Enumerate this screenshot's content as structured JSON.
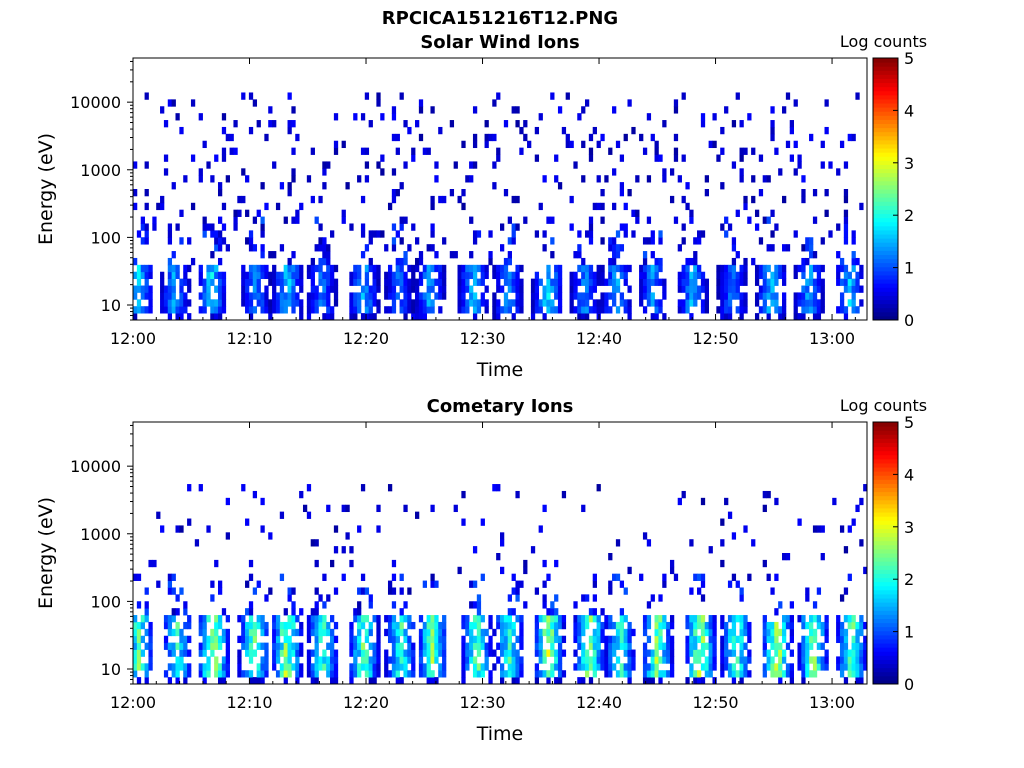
{
  "figure": {
    "title": "RPCICA151216T12.PNG"
  },
  "chart_data": [
    {
      "type": "heatmap",
      "title": "Solar Wind Ions",
      "xlabel": "Time",
      "ylabel": "Energy (eV)",
      "x_ticks": [
        "12:00",
        "12:10",
        "12:20",
        "12:30",
        "12:40",
        "12:50",
        "13:00"
      ],
      "x_range_minutes": [
        0,
        63
      ],
      "y_scale": "log",
      "y_ticks": [
        "10",
        "100",
        "1000",
        "10000"
      ],
      "y_range_eV": [
        6,
        45000
      ],
      "colorbar": {
        "label": "Log counts",
        "ticks": [
          "0",
          "1",
          "2",
          "3",
          "4",
          "5"
        ],
        "range": [
          0,
          5
        ],
        "colormap": "jet"
      },
      "bursts": [
        {
          "t": 0.5,
          "peak": 1.7
        },
        {
          "t": 3.6,
          "peak": 1.5
        },
        {
          "t": 6.8,
          "peak": 1.8
        },
        {
          "t": 10.5,
          "peak": 1.4
        },
        {
          "t": 13.3,
          "peak": 1.7
        },
        {
          "t": 16.2,
          "peak": 1.3
        },
        {
          "t": 19.8,
          "peak": 1.6
        },
        {
          "t": 22.8,
          "peak": 1.2
        },
        {
          "t": 25.5,
          "peak": 1.5
        },
        {
          "t": 29.2,
          "peak": 1.6
        },
        {
          "t": 32.2,
          "peak": 1.4
        },
        {
          "t": 35.6,
          "peak": 1.8
        },
        {
          "t": 38.8,
          "peak": 1.4
        },
        {
          "t": 41.5,
          "peak": 1.5
        },
        {
          "t": 44.6,
          "peak": 1.4
        },
        {
          "t": 48.0,
          "peak": 1.6
        },
        {
          "t": 51.5,
          "peak": 1.3
        },
        {
          "t": 54.8,
          "peak": 1.7
        },
        {
          "t": 58.0,
          "peak": 1.5
        },
        {
          "t": 61.5,
          "peak": 1.6
        }
      ],
      "burst_energy_eV": [
        15,
        35
      ],
      "background_energy_eV": [
        40,
        15000
      ],
      "background_level": 0.3
    },
    {
      "type": "heatmap",
      "title": "Cometary Ions",
      "xlabel": "Time",
      "ylabel": "Energy (eV)",
      "x_ticks": [
        "12:00",
        "12:10",
        "12:20",
        "12:30",
        "12:40",
        "12:50",
        "13:00"
      ],
      "x_range_minutes": [
        0,
        63
      ],
      "y_scale": "log",
      "y_ticks": [
        "10",
        "100",
        "1000",
        "10000"
      ],
      "y_range_eV": [
        6,
        45000
      ],
      "colorbar": {
        "label": "Log counts",
        "ticks": [
          "0",
          "1",
          "2",
          "3",
          "4",
          "5"
        ],
        "range": [
          0,
          5
        ],
        "colormap": "jet"
      },
      "bursts": [
        {
          "t": 0.5,
          "peak": 2.4
        },
        {
          "t": 3.8,
          "peak": 2.2
        },
        {
          "t": 6.9,
          "peak": 3.0
        },
        {
          "t": 10.4,
          "peak": 2.6
        },
        {
          "t": 13.2,
          "peak": 2.8
        },
        {
          "t": 16.3,
          "peak": 2.3
        },
        {
          "t": 19.8,
          "peak": 2.5
        },
        {
          "t": 23.0,
          "peak": 2.3
        },
        {
          "t": 25.7,
          "peak": 2.6
        },
        {
          "t": 29.5,
          "peak": 2.5
        },
        {
          "t": 32.3,
          "peak": 2.2
        },
        {
          "t": 35.7,
          "peak": 2.9
        },
        {
          "t": 39.2,
          "peak": 2.8
        },
        {
          "t": 41.8,
          "peak": 2.2
        },
        {
          "t": 45.0,
          "peak": 2.7
        },
        {
          "t": 48.7,
          "peak": 2.9
        },
        {
          "t": 51.8,
          "peak": 2.4
        },
        {
          "t": 55.3,
          "peak": 3.0
        },
        {
          "t": 58.4,
          "peak": 2.6
        },
        {
          "t": 61.7,
          "peak": 2.5
        }
      ],
      "burst_energy_eV": [
        14,
        45
      ],
      "background_energy_eV": [
        60,
        6000
      ],
      "background_level": 0.15
    }
  ]
}
